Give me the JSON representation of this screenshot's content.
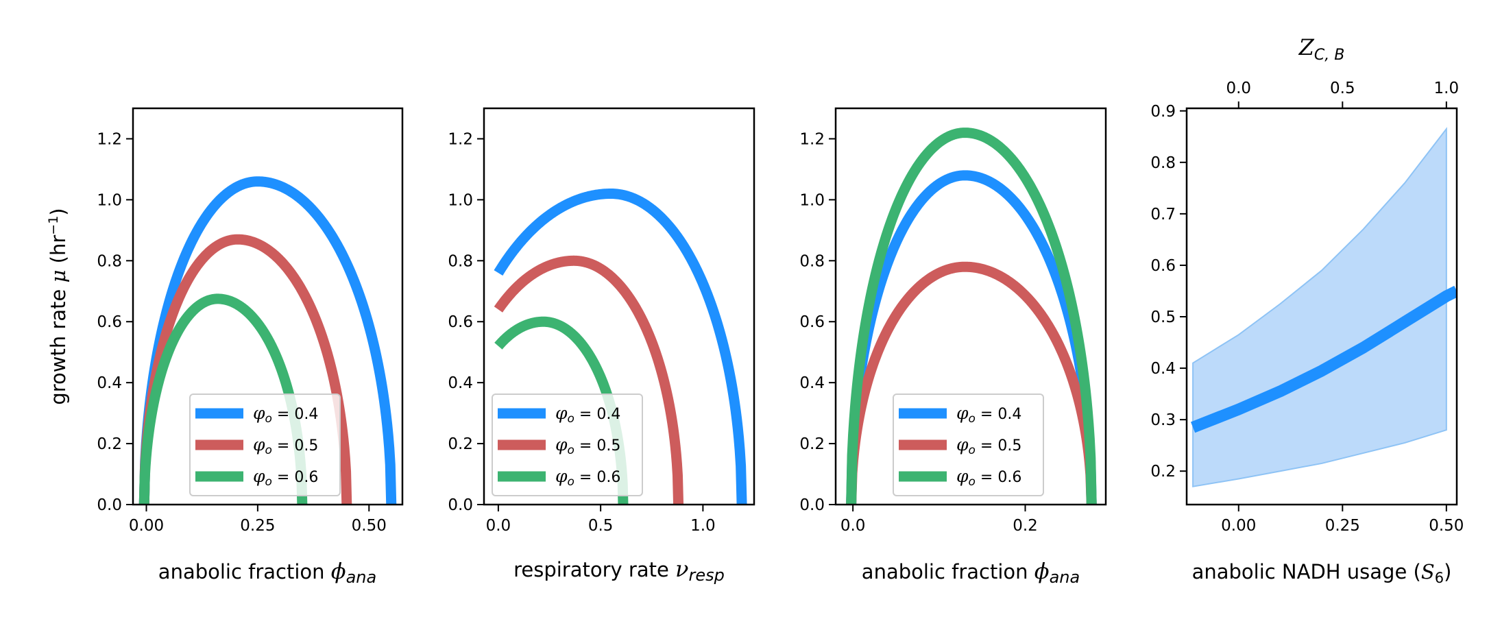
{
  "chart_data": [
    {
      "type": "line",
      "panel": 1,
      "xlabel": "anabolic fraction φ_ana",
      "ylabel": "growth rate μ (hr⁻¹)",
      "xlim": [
        -0.03,
        0.575
      ],
      "ylim": [
        0,
        1.3
      ],
      "xticks": [
        {
          "value": 0.0,
          "label": "0.00"
        },
        {
          "value": 0.25,
          "label": "0.25"
        },
        {
          "value": 0.5,
          "label": "0.50"
        }
      ],
      "yticks": [
        {
          "value": 0.0,
          "label": "0.0"
        },
        {
          "value": 0.2,
          "label": "0.2"
        },
        {
          "value": 0.4,
          "label": "0.4"
        },
        {
          "value": 0.6,
          "label": "0.6"
        },
        {
          "value": 0.8,
          "label": "0.8"
        },
        {
          "value": 1.0,
          "label": "1.0"
        },
        {
          "value": 1.2,
          "label": "1.2"
        }
      ],
      "grid": false,
      "legend_position": "lower-right",
      "series": [
        {
          "name": "φ_o = 0.4",
          "color": "#1e90ff",
          "curve": {
            "x0": -0.005,
            "x1": 0.55,
            "peak_x": 0.25,
            "peak_y": 1.06
          }
        },
        {
          "name": "φ_o = 0.5",
          "color": "#cd5c5c",
          "curve": {
            "x0": -0.005,
            "x1": 0.45,
            "peak_x": 0.205,
            "peak_y": 0.87
          }
        },
        {
          "name": "φ_o = 0.6",
          "color": "#3cb371",
          "curve": {
            "x0": -0.005,
            "x1": 0.35,
            "peak_x": 0.16,
            "peak_y": 0.675
          }
        }
      ]
    },
    {
      "type": "line",
      "panel": 2,
      "xlabel": "respiratory rate ν_resp",
      "ylabel": "",
      "xlim": [
        -0.07,
        1.25
      ],
      "ylim": [
        0,
        1.3
      ],
      "xticks": [
        {
          "value": 0.0,
          "label": "0.0"
        },
        {
          "value": 0.5,
          "label": "0.5"
        },
        {
          "value": 1.0,
          "label": "1.0"
        }
      ],
      "yticks": [
        {
          "value": 0.0,
          "label": "0.0"
        },
        {
          "value": 0.2,
          "label": "0.2"
        },
        {
          "value": 0.4,
          "label": "0.4"
        },
        {
          "value": 0.6,
          "label": "0.6"
        },
        {
          "value": 0.8,
          "label": "0.8"
        },
        {
          "value": 1.0,
          "label": "1.0"
        },
        {
          "value": 1.2,
          "label": "1.2"
        }
      ],
      "grid": false,
      "legend_position": "lower-left",
      "series": [
        {
          "name": "φ_o = 0.4",
          "color": "#1e90ff",
          "arc": {
            "x_start": 0.0,
            "y_start": 0.76,
            "x_end": 1.19,
            "peak_x": 0.55,
            "peak_y": 1.02
          }
        },
        {
          "name": "φ_o = 0.5",
          "color": "#cd5c5c",
          "arc": {
            "x_start": 0.0,
            "y_start": 0.64,
            "x_end": 0.88,
            "peak_x": 0.37,
            "peak_y": 0.8
          }
        },
        {
          "name": "φ_o = 0.6",
          "color": "#3cb371",
          "arc": {
            "x_start": 0.0,
            "y_start": 0.52,
            "x_end": 0.61,
            "peak_x": 0.22,
            "peak_y": 0.6
          }
        }
      ]
    },
    {
      "type": "line",
      "panel": 3,
      "xlabel": "anabolic fraction φ_ana",
      "ylabel": "",
      "xlim": [
        -0.02,
        0.2935
      ],
      "ylim": [
        0,
        1.3
      ],
      "xticks": [
        {
          "value": 0.0,
          "label": "0.0"
        },
        {
          "value": 0.2,
          "label": "0.2"
        }
      ],
      "yticks": [
        {
          "value": 0.0,
          "label": "0.0"
        },
        {
          "value": 0.2,
          "label": "0.2"
        },
        {
          "value": 0.4,
          "label": "0.4"
        },
        {
          "value": 0.6,
          "label": "0.6"
        },
        {
          "value": 0.8,
          "label": "0.8"
        },
        {
          "value": 1.0,
          "label": "1.0"
        },
        {
          "value": 1.2,
          "label": "1.2"
        }
      ],
      "grid": false,
      "legend_position": "lower-right",
      "series": [
        {
          "name": "φ_o = 0.4",
          "color": "#1e90ff",
          "curve": {
            "x0": -0.002,
            "x1": 0.277,
            "peak_x": 0.13,
            "peak_y": 1.08
          }
        },
        {
          "name": "φ_o = 0.5",
          "color": "#cd5c5c",
          "curve": {
            "x0": -0.002,
            "x1": 0.277,
            "peak_x": 0.13,
            "peak_y": 0.78
          }
        },
        {
          "name": "φ_o = 0.6",
          "color": "#3cb371",
          "curve": {
            "x0": -0.002,
            "x1": 0.277,
            "peak_x": 0.13,
            "peak_y": 1.22
          }
        }
      ]
    },
    {
      "type": "area",
      "panel": 4,
      "xlabel": "anabolic NADH usage (S₆)",
      "ylabel": "",
      "top_xlabel": "Z_{C,B}",
      "xlim": [
        -0.125,
        0.525
      ],
      "ylim": [
        0.135,
        0.905
      ],
      "xticks": [
        {
          "value": 0.0,
          "label": "0.00"
        },
        {
          "value": 0.25,
          "label": "0.25"
        },
        {
          "value": 0.5,
          "label": "0.50"
        }
      ],
      "yticks": [
        {
          "value": 0.2,
          "label": "0.2"
        },
        {
          "value": 0.3,
          "label": "0.3"
        },
        {
          "value": 0.4,
          "label": "0.4"
        },
        {
          "value": 0.5,
          "label": "0.5"
        },
        {
          "value": 0.6,
          "label": "0.6"
        },
        {
          "value": 0.7,
          "label": "0.7"
        },
        {
          "value": 0.8,
          "label": "0.8"
        },
        {
          "value": 0.9,
          "label": "0.9"
        }
      ],
      "top_xticks": [
        {
          "value": 0.0,
          "label": "0.0",
          "at_bottom_x": 0.0
        },
        {
          "value": 0.5,
          "label": "0.5",
          "at_bottom_x": 0.25
        },
        {
          "value": 1.0,
          "label": "1.0",
          "at_bottom_x": 0.5
        }
      ],
      "grid": false,
      "line_color": "#1e90ff",
      "band_color": "#b8d8fa",
      "band_edge_color": "#8ec3f5",
      "line": {
        "x": [
          -0.11,
          0.0,
          0.1,
          0.2,
          0.3,
          0.4,
          0.5,
          0.525
        ],
        "y": [
          0.285,
          0.32,
          0.355,
          0.395,
          0.44,
          0.49,
          0.54,
          0.55
        ]
      },
      "band": {
        "x": [
          -0.11,
          0.0,
          0.1,
          0.2,
          0.3,
          0.4,
          0.5
        ],
        "upper": [
          0.41,
          0.465,
          0.525,
          0.59,
          0.67,
          0.76,
          0.865
        ],
        "lower": [
          0.17,
          0.185,
          0.2,
          0.215,
          0.235,
          0.255,
          0.28
        ]
      }
    }
  ]
}
